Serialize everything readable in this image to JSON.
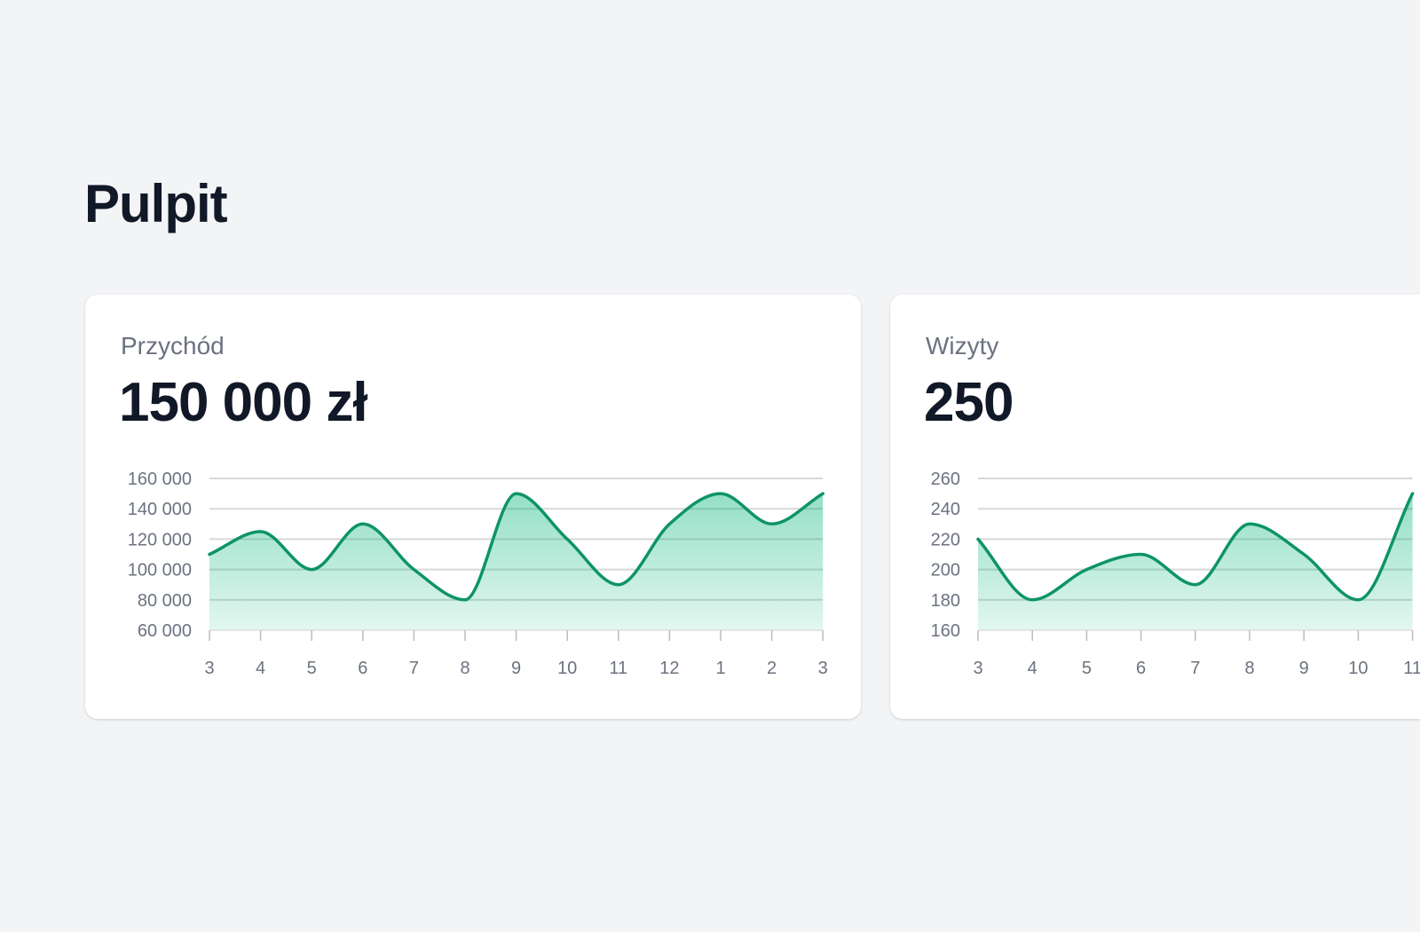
{
  "page": {
    "title": "Pulpit"
  },
  "colors": {
    "background": "#f3f4f6",
    "card": "#ffffff",
    "line": "#0e9466",
    "fill": "#10b981",
    "grid": "#e5e7eb",
    "title": "#111827",
    "muted": "#6b7280"
  },
  "cards": [
    {
      "label": "Przychód",
      "value": "150 000 zł"
    },
    {
      "label": "Wizyty",
      "value": "250"
    }
  ],
  "chart_data": [
    {
      "type": "area",
      "categories": [
        "3",
        "4",
        "5",
        "6",
        "7",
        "8",
        "9",
        "10",
        "11",
        "12",
        "1",
        "2",
        "3"
      ],
      "values": [
        110000,
        125000,
        100000,
        130000,
        100000,
        80000,
        150000,
        120000,
        90000,
        130000,
        150000,
        130000,
        150000
      ],
      "ylim": [
        60000,
        160000
      ],
      "yticks": [
        60000,
        80000,
        100000,
        120000,
        140000,
        160000
      ],
      "ytick_labels": [
        "60 000",
        "80 000",
        "100 000",
        "120 000",
        "140 000",
        "160 000"
      ],
      "grid": true
    },
    {
      "type": "area",
      "categories": [
        "3",
        "4",
        "5",
        "6",
        "7",
        "8",
        "9",
        "10",
        "11"
      ],
      "values": [
        220,
        180,
        200,
        210,
        190,
        230,
        210,
        180,
        250
      ],
      "ylim": [
        160,
        260
      ],
      "yticks": [
        160,
        180,
        200,
        220,
        240,
        260
      ],
      "ytick_labels": [
        "160",
        "180",
        "200",
        "220",
        "240",
        "260"
      ],
      "grid": true
    }
  ]
}
